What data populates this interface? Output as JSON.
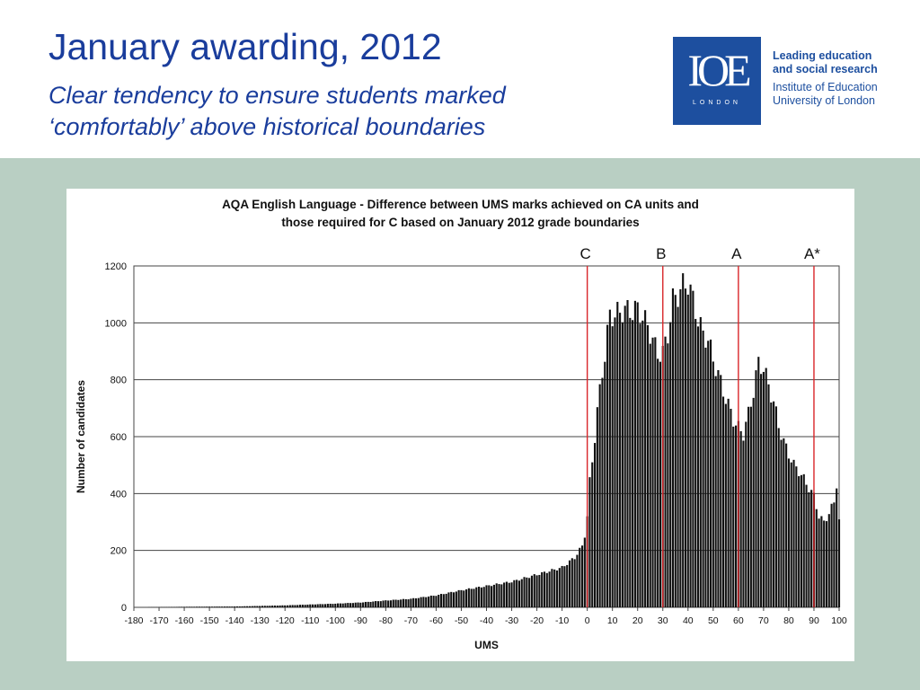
{
  "slide": {
    "title": "January awarding, 2012",
    "subtitle_line1": "Clear tendency to ensure students marked",
    "subtitle_line2": "‘comfortably’ above historical boundaries"
  },
  "logo": {
    "letters": "IOE",
    "city": "LONDON",
    "line1": "Leading education",
    "line2": "and social research",
    "line3": "Institute of Education",
    "line4": "University of London"
  },
  "colors": {
    "title": "#1a3d9c",
    "logo_blue": "#1d4f9f",
    "band": "#b9cfc3",
    "bars": "#111111",
    "boundary": "#d9262a"
  },
  "chart_data": {
    "type": "bar",
    "title_line1": "AQA English Language - Difference between UMS marks achieved on CA units and",
    "title_line2": "those required for C based on January 2012 grade boundaries",
    "xlabel": "UMS",
    "ylabel": "Number of candidates",
    "xlim": [
      -180,
      100
    ],
    "ylim": [
      0,
      1200
    ],
    "yticks": [
      0,
      200,
      400,
      600,
      800,
      1000,
      1200
    ],
    "xticks": [
      -180,
      -170,
      -160,
      -150,
      -140,
      -130,
      -120,
      -110,
      -100,
      -90,
      -80,
      -70,
      -60,
      -50,
      -40,
      -30,
      -20,
      -10,
      0,
      10,
      20,
      30,
      40,
      50,
      60,
      70,
      80,
      90,
      100
    ],
    "grid": "horizontal",
    "boundaries": [
      {
        "label": "C",
        "x": 0
      },
      {
        "label": "B",
        "x": 30
      },
      {
        "label": "A",
        "x": 60
      },
      {
        "label": "A*",
        "x": 90
      }
    ],
    "anchor_points": [
      [
        -180,
        0
      ],
      [
        -160,
        2
      ],
      [
        -140,
        3
      ],
      [
        -120,
        7
      ],
      [
        -110,
        10
      ],
      [
        -100,
        13
      ],
      [
        -90,
        17
      ],
      [
        -80,
        24
      ],
      [
        -70,
        30
      ],
      [
        -60,
        42
      ],
      [
        -50,
        60
      ],
      [
        -40,
        75
      ],
      [
        -30,
        90
      ],
      [
        -20,
        115
      ],
      [
        -10,
        140
      ],
      [
        -5,
        175
      ],
      [
        -2,
        215
      ],
      [
        -1,
        255
      ],
      [
        0,
        320
      ],
      [
        1,
        440
      ],
      [
        2,
        515
      ],
      [
        3,
        600
      ],
      [
        4,
        690
      ],
      [
        5,
        760
      ],
      [
        6,
        830
      ],
      [
        7,
        885
      ],
      [
        8,
        960
      ],
      [
        9,
        1030
      ],
      [
        11,
        1025
      ],
      [
        13,
        1040
      ],
      [
        15,
        1045
      ],
      [
        18,
        1040
      ],
      [
        20,
        1050
      ],
      [
        22,
        1020
      ],
      [
        24,
        990
      ],
      [
        26,
        940
      ],
      [
        28,
        890
      ],
      [
        30,
        895
      ],
      [
        32,
        960
      ],
      [
        34,
        1080
      ],
      [
        36,
        1100
      ],
      [
        38,
        1130
      ],
      [
        40,
        1140
      ],
      [
        42,
        1080
      ],
      [
        44,
        1010
      ],
      [
        46,
        960
      ],
      [
        48,
        940
      ],
      [
        50,
        870
      ],
      [
        52,
        820
      ],
      [
        54,
        760
      ],
      [
        56,
        710
      ],
      [
        58,
        660
      ],
      [
        60,
        630
      ],
      [
        62,
        610
      ],
      [
        64,
        680
      ],
      [
        66,
        760
      ],
      [
        68,
        860
      ],
      [
        70,
        840
      ],
      [
        72,
        780
      ],
      [
        74,
        720
      ],
      [
        76,
        640
      ],
      [
        78,
        580
      ],
      [
        80,
        540
      ],
      [
        82,
        500
      ],
      [
        84,
        480
      ],
      [
        86,
        450
      ],
      [
        88,
        420
      ],
      [
        90,
        390
      ],
      [
        92,
        320
      ],
      [
        94,
        300
      ],
      [
        96,
        330
      ],
      [
        98,
        370
      ],
      [
        99,
        435
      ],
      [
        100,
        305
      ]
    ]
  }
}
